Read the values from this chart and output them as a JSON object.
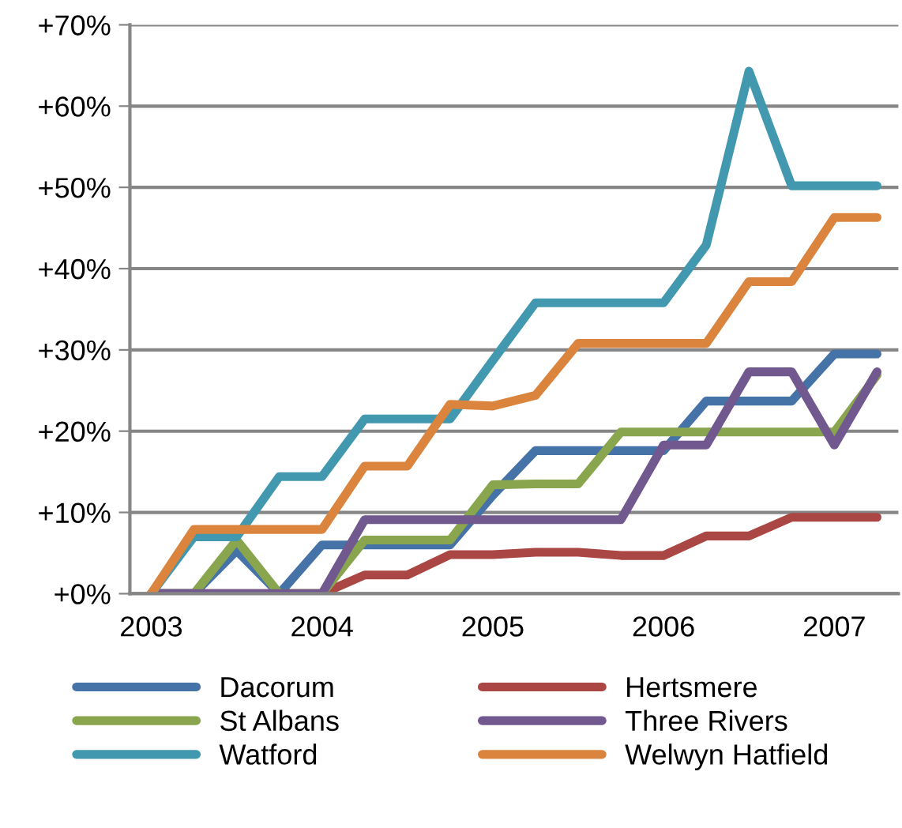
{
  "chart_data": {
    "type": "line",
    "categories": [
      "2003",
      null,
      null,
      null,
      "2004",
      null,
      null,
      null,
      "2005",
      null,
      null,
      null,
      "2006",
      null,
      null,
      null,
      "2007",
      null
    ],
    "series": [
      {
        "name": "Dacorum",
        "color": "#4572a7",
        "values": [
          0,
          0,
          5.3,
          0,
          6.0,
          6.0,
          6.0,
          6.0,
          12.1,
          17.6,
          17.6,
          17.6,
          17.6,
          23.7,
          23.7,
          23.7,
          29.5,
          29.5
        ]
      },
      {
        "name": "Hertsmere",
        "color": "#aa4643",
        "values": [
          0,
          0,
          0,
          0,
          0,
          2.3,
          2.3,
          4.8,
          4.8,
          5.1,
          5.1,
          4.7,
          4.7,
          7.1,
          7.1,
          9.4,
          9.4,
          9.4
        ]
      },
      {
        "name": "St Albans",
        "color": "#89a54e",
        "values": [
          0,
          0,
          6.6,
          0,
          0,
          6.6,
          6.6,
          6.6,
          13.4,
          13.5,
          13.5,
          19.9,
          19.9,
          19.9,
          19.9,
          19.9,
          19.9,
          26.9
        ]
      },
      {
        "name": "Three Rivers",
        "color": "#71588f",
        "values": [
          0,
          0,
          0,
          0,
          0,
          9.1,
          9.1,
          9.1,
          9.1,
          9.1,
          9.1,
          9.1,
          18.3,
          18.3,
          27.3,
          27.3,
          18.3,
          27.3
        ]
      },
      {
        "name": "Watford",
        "color": "#4198af",
        "values": [
          0,
          7,
          7,
          14.4,
          14.4,
          21.5,
          21.5,
          21.5,
          28.7,
          35.8,
          35.8,
          35.8,
          35.8,
          42.9,
          64.3,
          50.2,
          50.2,
          50.2
        ]
      },
      {
        "name": "Welwyn Hatfield",
        "color": "#db843d",
        "values": [
          0,
          7.9,
          7.9,
          7.9,
          7.9,
          15.7,
          15.7,
          23.3,
          23.1,
          24.4,
          30.8,
          30.8,
          30.8,
          30.8,
          38.4,
          38.4,
          46.3,
          46.3
        ]
      }
    ],
    "ylim": [
      0,
      70
    ],
    "yticks": [
      {
        "value": 0,
        "label": "+0%"
      },
      {
        "value": 10,
        "label": "+10%"
      },
      {
        "value": 20,
        "label": "+20%"
      },
      {
        "value": 30,
        "label": "+30%"
      },
      {
        "value": 40,
        "label": "+40%"
      },
      {
        "value": 50,
        "label": "+50%"
      },
      {
        "value": 60,
        "label": "+60%"
      },
      {
        "value": 70,
        "label": "+70%"
      }
    ],
    "grid": "y",
    "legend": "bottom",
    "marker": "none",
    "line_style": "solid"
  }
}
